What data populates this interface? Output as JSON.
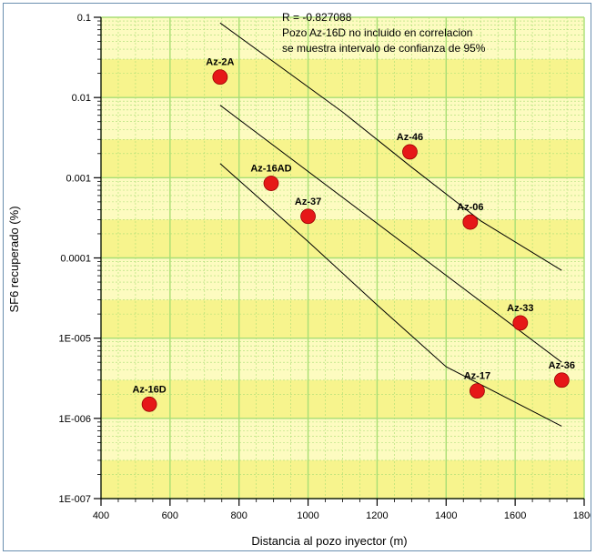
{
  "colors": {
    "plot_bg": "#fdfbc0",
    "band": "#f4f27c",
    "grid": "#a8de74",
    "marker": "#e61818",
    "line": "#000000"
  },
  "chart_data": {
    "type": "scatter",
    "xlabel": "Distancia al pozo inyector (m)",
    "ylabel": "SF6 recuperado (%)",
    "xlim": [
      400,
      1800
    ],
    "ylim": [
      1e-07,
      0.1
    ],
    "yscale": "log",
    "grid": true,
    "x_ticks": [
      "400",
      "600",
      "800",
      "1000",
      "1200",
      "1400",
      "1600",
      "1800"
    ],
    "y_ticks": [
      "0.1",
      "0.01",
      "0.001",
      "0.0001",
      "1E-005",
      "1E-006",
      "1E-007"
    ],
    "annotations": [
      "R = -0.827088",
      "Pozo Az-16D no incluido en correlacion",
      "se muestra intervalo de confianza de 95%"
    ],
    "points": [
      {
        "label": "Az-2A",
        "x": 745,
        "y": 0.018
      },
      {
        "label": "Az-16AD",
        "x": 893,
        "y": 0.00085
      },
      {
        "label": "Az-37",
        "x": 1000,
        "y": 0.00033
      },
      {
        "label": "Az-46",
        "x": 1295,
        "y": 0.0021
      },
      {
        "label": "Az-06",
        "x": 1470,
        "y": 0.00028
      },
      {
        "label": "Az-33",
        "x": 1615,
        "y": 1.55e-05
      },
      {
        "label": "Az-36",
        "x": 1735,
        "y": 3e-06
      },
      {
        "label": "Az-17",
        "x": 1490,
        "y": 2.2e-06
      },
      {
        "label": "Az-16D",
        "x": 540,
        "y": 1.5e-06
      }
    ],
    "regression_line": {
      "x": [
        745,
        1735
      ],
      "y": [
        0.008,
        5e-06
      ]
    },
    "confidence_upper": {
      "x": [
        745,
        1100,
        1300,
        1500,
        1735
      ],
      "y": [
        0.085,
        0.0066,
        0.00135,
        0.00029,
        7e-05
      ]
    },
    "confidence_lower": {
      "x": [
        745,
        1000,
        1200,
        1400,
        1735
      ],
      "y": [
        0.0015,
        0.00016,
        2.6e-05,
        4.4e-06,
        8e-07
      ]
    }
  }
}
